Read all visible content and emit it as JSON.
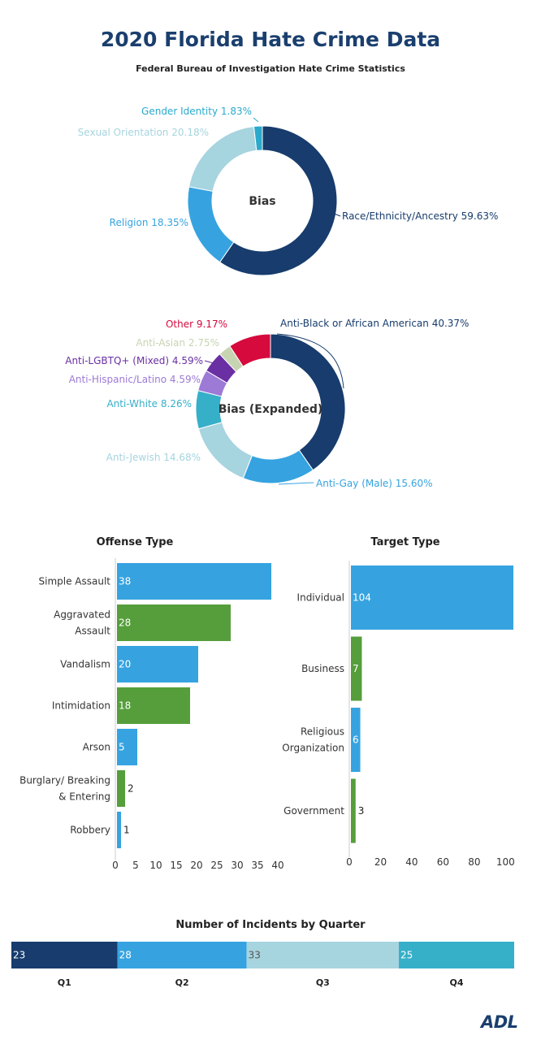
{
  "page": {
    "title": "2020 Florida Hate Crime Data",
    "subtitle": "Federal Bureau of Investigation Hate Crime Statistics",
    "logo_text": "ADL"
  },
  "colors": {
    "title": "#1a3f6e",
    "navy": "#173c6d",
    "blue": "#36a3e0",
    "light_blue": "#9fd3e0",
    "teal": "#36afc9",
    "cyan": "#2aa9cc",
    "green": "#559e3b",
    "purple": "#6a2fa3",
    "lavender": "#9c7ad6",
    "sage": "#c6d4b2",
    "red": "#d60a3c",
    "axis": "#555555"
  },
  "chart_data": [
    {
      "type": "pie",
      "title": "",
      "center_label": "Bias",
      "slices": [
        {
          "label": "Race/Ethnicity/Ancestry 59.63%",
          "value": 59.63,
          "color": "#173c6d"
        },
        {
          "label": "Religion 18.35%",
          "value": 18.35,
          "color": "#36a3e0"
        },
        {
          "label": "Sexual Orientation 20.18%",
          "value": 20.18,
          "color": "#a6d4df"
        },
        {
          "label": "Gender Identity 1.83%",
          "value": 1.83,
          "color": "#2aa9cc"
        }
      ]
    },
    {
      "type": "pie",
      "title": "",
      "center_label": "Bias (Expanded)",
      "slices": [
        {
          "label": "Anti-Black or African American 40.37%",
          "value": 40.37,
          "color": "#173c6d"
        },
        {
          "label": "Anti-Gay (Male) 15.60%",
          "value": 15.6,
          "color": "#36a3e0"
        },
        {
          "label": "Anti-Jewish 14.68%",
          "value": 14.68,
          "color": "#a6d4df"
        },
        {
          "label": "Anti-White 8.26%",
          "value": 8.26,
          "color": "#36afc9"
        },
        {
          "label": "Anti-Hispanic/Latino 4.59%",
          "value": 4.59,
          "color": "#9c7ad6"
        },
        {
          "label": "Anti-LGBTQ+ (Mixed) 4.59%",
          "value": 4.59,
          "color": "#6a2fa3"
        },
        {
          "label": "Anti-Asian 2.75%",
          "value": 2.75,
          "color": "#c6d4b2"
        },
        {
          "label": "Other 9.17%",
          "value": 9.17,
          "color": "#d60a3c"
        }
      ]
    },
    {
      "type": "bar",
      "orientation": "horizontal",
      "title": "Offense Type",
      "categories": [
        "Simple Assault",
        "Aggravated Assault",
        "Vandalism",
        "Intimidation",
        "Arson",
        "Burglary/ Breaking & Entering",
        "Robbery"
      ],
      "values": [
        38,
        28,
        20,
        18,
        5,
        2,
        1
      ],
      "colors": [
        "#36a3e0",
        "#559e3b",
        "#36a3e0",
        "#559e3b",
        "#36a3e0",
        "#559e3b",
        "#36a3e0"
      ],
      "xlim": [
        0,
        42
      ],
      "xticks": [
        0,
        5,
        10,
        15,
        20,
        25,
        30,
        35,
        40
      ]
    },
    {
      "type": "bar",
      "orientation": "horizontal",
      "title": "Target Type",
      "categories": [
        "Individual",
        "Business",
        "Religious Organization",
        "Government"
      ],
      "values": [
        104,
        7,
        6,
        3
      ],
      "colors": [
        "#36a3e0",
        "#559e3b",
        "#36a3e0",
        "#559e3b"
      ],
      "xlim": [
        0,
        104
      ],
      "xticks": [
        0,
        20,
        40,
        60,
        80,
        100
      ]
    },
    {
      "type": "bar",
      "orientation": "stacked-horizontal",
      "title": "Number of Incidents by Quarter",
      "categories": [
        "Q1",
        "Q2",
        "Q3",
        "Q4"
      ],
      "values": [
        23,
        28,
        33,
        25
      ],
      "colors": [
        "#173c6d",
        "#36a3e0",
        "#a6d4df",
        "#36afc9"
      ]
    }
  ]
}
